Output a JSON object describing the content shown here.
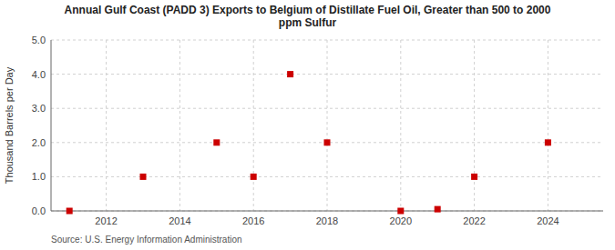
{
  "chart_data": {
    "type": "scatter",
    "title": "Annual Gulf Coast (PADD 3) Exports to Belgium of Distillate Fuel Oil, Greater than 500 to 2000\nppm Sulfur",
    "y_label": "Thousand Barrels per Day",
    "annotations": [
      "Source: U.S. Energy Information Administration"
    ],
    "x": [
      2011,
      2013,
      2015,
      2016,
      2017,
      2018,
      2020,
      2021,
      2022,
      2024
    ],
    "values": [
      0.0,
      1.0,
      2.0,
      1.0,
      4.0,
      2.0,
      0.0,
      0.05,
      1.0,
      2.0
    ],
    "color": "#cc0000",
    "marker": "square",
    "xlim": [
      2010.5,
      2025.5
    ],
    "xticks": [
      2012,
      2014,
      2016,
      2018,
      2020,
      2022,
      2024
    ],
    "ylim": [
      0,
      5.0
    ],
    "yticks": [
      {
        "value": 0.0,
        "label": "0.0"
      },
      {
        "value": 1.0,
        "label": "1.0"
      },
      {
        "value": 2.0,
        "label": "2.0"
      },
      {
        "value": 3.0,
        "label": "3.0"
      },
      {
        "value": 4.0,
        "label": "4.0"
      },
      {
        "value": 5.0,
        "label": "5.0"
      }
    ],
    "grid": true
  }
}
